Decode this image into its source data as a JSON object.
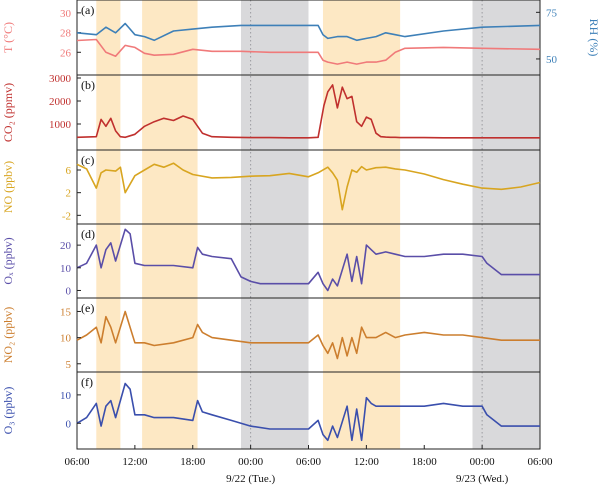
{
  "chart_data": {
    "type": "line",
    "x_axis": {
      "range": [
        "06:00 day0",
        "06:00 day2"
      ],
      "tick_labels": [
        "06:00",
        "12:00",
        "18:00",
        "00:00",
        "06:00",
        "12:00",
        "18:00",
        "00:00",
        "06:00"
      ],
      "date_labels": [
        "9/22 (Tue.)",
        "9/23 (Wed.)"
      ]
    },
    "shaded_regions": {
      "daytime_orange": [
        [
          "08:00",
          "10:30"
        ],
        [
          "12:45",
          "18:30"
        ],
        [
          "07:30",
          "15:30"
        ]
      ],
      "night_gray": [
        [
          "23:00",
          "06:00"
        ],
        [
          "23:00",
          "06:00"
        ]
      ],
      "colors": {
        "orange": "#fde8c4",
        "gray": "#d9d9db"
      }
    },
    "panels": [
      {
        "label": "(a)",
        "series": [
          {
            "name": "T",
            "axis_label": "T (°C)",
            "color": "#f07a7a",
            "ylim": [
              24,
              31
            ],
            "ticks": [
              26,
              28,
              30
            ],
            "x_hours": [
              0,
              2,
              3,
              4,
              5,
              6,
              7,
              8,
              10,
              12,
              14,
              17,
              20,
              24,
              25,
              25.5,
              26,
              27,
              28,
              29,
              30,
              31,
              32,
              33,
              34,
              38,
              42,
              48
            ],
            "values": [
              27.2,
              27.3,
              26.0,
              25.6,
              26.7,
              26.5,
              25.9,
              25.7,
              25.8,
              26.3,
              26.1,
              26.1,
              26.0,
              26.0,
              26.0,
              25.2,
              25.0,
              24.8,
              25.0,
              24.8,
              25.0,
              25.0,
              25.2,
              26.0,
              26.4,
              26.5,
              26.4,
              26.3
            ]
          },
          {
            "name": "RH",
            "axis_label": "RH (%)",
            "color": "#3e80b8",
            "ylim": [
              43,
              80
            ],
            "ticks": [
              50,
              75
            ],
            "x_hours": [
              0,
              2,
              3,
              4,
              5,
              6,
              7,
              8,
              10,
              12,
              14,
              17,
              20,
              24,
              25,
              25.5,
              26,
              27,
              28,
              29,
              30,
              31,
              32,
              33,
              34,
              38,
              42,
              48
            ],
            "values": [
              64,
              63,
              67,
              64,
              69,
              63,
              62,
              60,
              65,
              66,
              67,
              68,
              68,
              68,
              68,
              63,
              61,
              62,
              62,
              60,
              61,
              62,
              64,
              63,
              62,
              65,
              67,
              68
            ]
          }
        ]
      },
      {
        "label": "(b)",
        "series": [
          {
            "name": "CO2",
            "axis_label": "CO₂ (ppmv)",
            "color": "#c0302e",
            "ylim": [
              0,
              3000
            ],
            "ticks": [
              1000,
              2000,
              3000
            ],
            "x_hours": [
              0,
              2,
              2.5,
              3,
              3.5,
              4,
              4.5,
              5,
              6,
              7,
              8,
              9,
              10,
              11,
              12,
              13,
              14,
              16,
              18,
              20,
              22,
              24,
              25,
              25.6,
              26,
              26.5,
              27,
              27.5,
              28,
              28.5,
              29,
              29.5,
              30,
              30.5,
              31,
              31.5,
              32,
              32.5,
              33,
              33.5,
              34,
              36,
              38,
              40,
              44,
              48
            ],
            "values": [
              420,
              450,
              1200,
              900,
              1250,
              700,
              450,
              420,
              550,
              900,
              1100,
              1250,
              1150,
              1350,
              1200,
              600,
              450,
              420,
              410,
              410,
              400,
              400,
              420,
              1800,
              2400,
              2700,
              1700,
              2600,
              2100,
              2200,
              1100,
              900,
              1300,
              1200,
              600,
              450,
              430,
              420,
              420,
              410,
              410,
              410,
              400,
              400,
              400,
              400
            ]
          }
        ]
      },
      {
        "label": "(c)",
        "series": [
          {
            "name": "NO",
            "axis_label": "NO (ppbv)",
            "color": "#d8a520",
            "ylim": [
              -3,
              9
            ],
            "ticks": [
              -2,
              2,
              6
            ],
            "x_hours": [
              0,
              1,
              2,
              2.5,
              3,
              4,
              4.5,
              5,
              6,
              7,
              8,
              9,
              10,
              11,
              12,
              14,
              16,
              18,
              20,
              22,
              24,
              25,
              26,
              26.5,
              27,
              27.5,
              28,
              28.5,
              29,
              29.5,
              30,
              31,
              32,
              33,
              34,
              36,
              38,
              40,
              42,
              44,
              46,
              48
            ],
            "values": [
              7.0,
              6.2,
              2.8,
              5.5,
              6.0,
              5.8,
              6.5,
              2.0,
              5.0,
              6.0,
              7.0,
              6.5,
              7.2,
              6.0,
              5.2,
              4.6,
              4.7,
              4.9,
              5.0,
              5.4,
              4.8,
              5.5,
              6.5,
              5.5,
              4.2,
              -1.0,
              3.0,
              6.0,
              5.6,
              6.6,
              6.0,
              6.4,
              6.5,
              6.2,
              6.0,
              5.3,
              4.3,
              3.5,
              2.8,
              2.6,
              3.0,
              3.8
            ]
          }
        ]
      },
      {
        "label": "(d)",
        "series": [
          {
            "name": "Ox",
            "axis_label": "Oₓ (ppbv)",
            "color": "#5a4ea8",
            "ylim": [
              -2,
              28
            ],
            "ticks": [
              0,
              10,
              20
            ],
            "x_hours": [
              0,
              1,
              2,
              2.5,
              3,
              3.5,
              4,
              5,
              5.5,
              6,
              7,
              8,
              10,
              12,
              12.5,
              13,
              14,
              16,
              17,
              18,
              19,
              20,
              22,
              24,
              25,
              25.5,
              26,
              26.5,
              27,
              28,
              28.5,
              29,
              29.5,
              30,
              30.5,
              31,
              32,
              33,
              34,
              36,
              38,
              40,
              42,
              42.5,
              44,
              46,
              48
            ],
            "values": [
              10,
              12,
              20,
              10,
              18,
              21,
              13,
              27,
              25,
              12,
              11,
              11,
              11,
              10,
              19,
              16,
              15,
              14,
              6,
              4,
              3,
              3,
              3,
              3,
              8,
              3,
              0,
              5,
              2,
              16,
              4,
              15,
              3,
              20,
              18,
              16,
              17,
              16,
              15,
              15,
              16,
              16,
              15,
              12,
              7,
              7,
              7
            ]
          }
        ]
      },
      {
        "label": "(e)",
        "series": [
          {
            "name": "NO2",
            "axis_label": "NO₂ (ppbv)",
            "color": "#cc7e2e",
            "ylim": [
              4,
              17
            ],
            "ticks": [
              5,
              10,
              15
            ],
            "x_hours": [
              0,
              1,
              2,
              2.5,
              3,
              3.5,
              4,
              5,
              6,
              7,
              8,
              10,
              12,
              12.5,
              13,
              14,
              16,
              18,
              20,
              22,
              24,
              25,
              25.5,
              26,
              26.5,
              27,
              27.5,
              28,
              28.5,
              29,
              29.5,
              30,
              31,
              32,
              33,
              34,
              36,
              38,
              40,
              42,
              44,
              46,
              48
            ],
            "values": [
              9.5,
              10.5,
              12,
              9,
              14,
              12,
              9,
              15,
              9,
              9,
              8.5,
              9,
              10,
              12.5,
              11,
              10,
              9.5,
              9,
              9,
              9,
              9,
              10.5,
              8.5,
              7,
              9,
              6,
              10,
              6.5,
              10,
              7,
              12,
              10,
              10,
              11,
              10,
              10.5,
              11,
              10.5,
              10.5,
              10,
              9.5,
              9.5,
              9.5
            ]
          }
        ]
      },
      {
        "label": "(f)",
        "series": [
          {
            "name": "O3",
            "axis_label": "O₃ (ppbv)",
            "color": "#3a4fad",
            "ylim": [
              -8,
              17
            ],
            "ticks": [
              0,
              10
            ],
            "x_hours": [
              0,
              1,
              2,
              2.5,
              3,
              3.5,
              4,
              5,
              5.5,
              6,
              7,
              8,
              10,
              12,
              12.5,
              13,
              14,
              16,
              18,
              20,
              22,
              24,
              25,
              25.5,
              26,
              26.5,
              27,
              28,
              28.5,
              29,
              29.5,
              30,
              30.5,
              31,
              32,
              33,
              34,
              36,
              38,
              40,
              42,
              42.5,
              44,
              46,
              48
            ],
            "values": [
              0,
              2,
              7,
              -1,
              6,
              8,
              2,
              14,
              12,
              3,
              3,
              2,
              2,
              1,
              8,
              4,
              3,
              1,
              -1,
              -2,
              -2,
              -2,
              1,
              -4,
              -6,
              -1,
              -5,
              6,
              -6,
              5,
              -6,
              9,
              7,
              6,
              6,
              6,
              6,
              6,
              7,
              6,
              6,
              3,
              -1,
              -1,
              -1
            ]
          }
        ]
      }
    ]
  }
}
